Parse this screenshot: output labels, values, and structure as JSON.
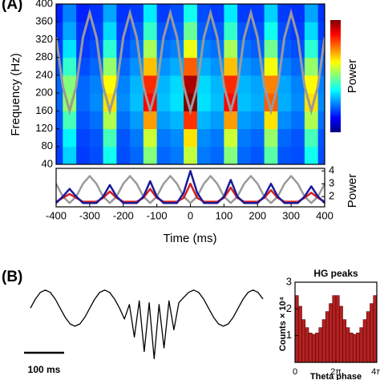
{
  "chart_data": [
    {
      "type": "heatmap",
      "panel_label": "(A)",
      "ylabel": "Frequency (Hz)",
      "colorbar_label": "Power",
      "xlim": [
        -400,
        400
      ],
      "ylim": [
        40,
        400
      ],
      "yticks": [
        40,
        80,
        120,
        160,
        200,
        240,
        280,
        320,
        360,
        400
      ],
      "zlim": [
        0,
        1.15
      ],
      "x": [
        -400,
        -360,
        -320,
        -280,
        -240,
        -200,
        -160,
        -120,
        -80,
        -40,
        0,
        40,
        80,
        120,
        160,
        200,
        240,
        280,
        320,
        360,
        400
      ],
      "y": [
        60,
        100,
        140,
        180,
        220,
        260,
        300,
        340,
        380
      ],
      "z": [
        [
          0.21,
          0.22,
          0.24,
          0.26,
          0.26,
          0.23,
          0.21,
          0.2,
          0.18
        ],
        [
          0.38,
          0.42,
          0.51,
          0.6,
          0.58,
          0.49,
          0.4,
          0.33,
          0.29
        ],
        [
          0.21,
          0.22,
          0.24,
          0.26,
          0.26,
          0.23,
          0.21,
          0.2,
          0.18
        ],
        [
          0.23,
          0.24,
          0.27,
          0.3,
          0.29,
          0.26,
          0.23,
          0.21,
          0.2
        ],
        [
          0.45,
          0.51,
          0.63,
          0.75,
          0.72,
          0.6,
          0.48,
          0.39,
          0.33
        ],
        [
          0.23,
          0.24,
          0.27,
          0.3,
          0.29,
          0.26,
          0.23,
          0.21,
          0.2
        ],
        [
          0.26,
          0.28,
          0.32,
          0.36,
          0.35,
          0.31,
          0.27,
          0.24,
          0.21
        ],
        [
          0.58,
          0.66,
          0.83,
          1.0,
          0.96,
          0.79,
          0.62,
          0.49,
          0.41
        ],
        [
          0.26,
          0.28,
          0.32,
          0.36,
          0.35,
          0.31,
          0.27,
          0.24,
          0.21
        ],
        [
          0.28,
          0.3,
          0.35,
          0.4,
          0.39,
          0.34,
          0.29,
          0.25,
          0.23
        ],
        [
          0.65,
          0.75,
          0.95,
          1.15,
          1.1,
          0.9,
          0.7,
          0.55,
          0.45
        ],
        [
          0.28,
          0.3,
          0.35,
          0.4,
          0.39,
          0.34,
          0.29,
          0.25,
          0.23
        ],
        [
          0.26,
          0.28,
          0.32,
          0.36,
          0.35,
          0.31,
          0.27,
          0.24,
          0.21
        ],
        [
          0.58,
          0.66,
          0.83,
          1.0,
          0.96,
          0.79,
          0.62,
          0.49,
          0.41
        ],
        [
          0.26,
          0.28,
          0.32,
          0.36,
          0.35,
          0.31,
          0.27,
          0.24,
          0.21
        ],
        [
          0.24,
          0.26,
          0.3,
          0.34,
          0.33,
          0.29,
          0.25,
          0.23,
          0.21
        ],
        [
          0.53,
          0.6,
          0.75,
          0.9,
          0.86,
          0.71,
          0.56,
          0.45,
          0.38
        ],
        [
          0.24,
          0.26,
          0.3,
          0.34,
          0.33,
          0.29,
          0.25,
          0.23,
          0.21
        ],
        [
          0.23,
          0.24,
          0.27,
          0.3,
          0.29,
          0.26,
          0.23,
          0.21,
          0.2
        ],
        [
          0.45,
          0.51,
          0.63,
          0.75,
          0.72,
          0.6,
          0.48,
          0.39,
          0.33
        ],
        [
          0.23,
          0.24,
          0.27,
          0.3,
          0.29,
          0.26,
          0.23,
          0.21,
          0.2
        ]
      ],
      "overlay": {
        "color": "#9a9a9a",
        "x": [
          -400,
          -380,
          -360,
          -340,
          -320,
          -300,
          -280,
          -260,
          -240,
          -220,
          -200,
          -180,
          -160,
          -140,
          -120,
          -100,
          -80,
          -60,
          -40,
          -20,
          0,
          20,
          40,
          60,
          80,
          100,
          120,
          140,
          160,
          180,
          200,
          220,
          240,
          260,
          280,
          300,
          320,
          340,
          360,
          380,
          400
        ],
        "values": [
          325,
          215,
          160,
          215,
          325,
          380,
          325,
          215,
          160,
          215,
          325,
          380,
          325,
          215,
          160,
          215,
          325,
          380,
          325,
          215,
          160,
          215,
          325,
          380,
          325,
          215,
          160,
          215,
          325,
          380,
          325,
          215,
          160,
          215,
          325,
          380,
          325,
          215,
          160,
          215,
          325
        ]
      }
    },
    {
      "type": "line",
      "xlabel": "Time (ms)",
      "y2label": "Power",
      "xlim": [
        -400,
        400
      ],
      "xticks": [
        -400,
        -300,
        -200,
        -100,
        0,
        100,
        200,
        300,
        400
      ],
      "y2lim": [
        1.2,
        4.2
      ],
      "y2ticks": [
        2,
        3,
        4
      ],
      "x": [
        -400,
        -380,
        -360,
        -340,
        -320,
        -300,
        -280,
        -260,
        -240,
        -220,
        -200,
        -180,
        -160,
        -140,
        -120,
        -100,
        -80,
        -60,
        -40,
        -20,
        0,
        20,
        40,
        60,
        80,
        100,
        120,
        140,
        160,
        180,
        200,
        220,
        240,
        260,
        280,
        300,
        320,
        340,
        360,
        380,
        400
      ],
      "series": [
        {
          "color": "#9a9a9a",
          "axis": "y2",
          "values": [
            3.0,
            2.0,
            1.5,
            2.0,
            3.0,
            3.6,
            3.0,
            2.0,
            1.5,
            2.0,
            3.0,
            3.6,
            3.0,
            2.0,
            1.5,
            2.0,
            3.0,
            3.6,
            3.0,
            2.0,
            1.5,
            2.0,
            3.0,
            3.6,
            3.0,
            2.0,
            1.5,
            2.0,
            3.0,
            3.6,
            3.0,
            2.0,
            1.5,
            2.0,
            3.0,
            3.6,
            3.0,
            2.0,
            1.5,
            2.0,
            3.0
          ]
        },
        {
          "color": "#d42020",
          "axis": "y2",
          "values": [
            1.6,
            1.9,
            2.2,
            1.9,
            1.6,
            1.6,
            1.6,
            1.9,
            2.4,
            1.9,
            1.6,
            1.6,
            1.6,
            1.9,
            2.6,
            1.9,
            1.6,
            1.6,
            1.6,
            1.9,
            3.0,
            1.9,
            1.6,
            1.6,
            1.6,
            1.9,
            2.7,
            1.9,
            1.6,
            1.6,
            1.6,
            1.9,
            2.5,
            1.9,
            1.6,
            1.6,
            1.6,
            1.9,
            2.3,
            1.9,
            1.6
          ]
        },
        {
          "color": "#1a1a9a",
          "axis": "y2",
          "values": [
            1.5,
            2.0,
            2.6,
            2.0,
            1.5,
            1.5,
            1.5,
            2.0,
            2.9,
            2.0,
            1.5,
            1.5,
            1.5,
            2.0,
            3.2,
            2.0,
            1.5,
            1.5,
            1.5,
            2.3,
            4.0,
            2.3,
            1.5,
            1.5,
            1.5,
            2.0,
            3.3,
            2.0,
            1.5,
            1.5,
            1.5,
            2.0,
            3.0,
            2.0,
            1.5,
            1.5,
            1.5,
            2.0,
            2.8,
            2.0,
            1.5
          ]
        }
      ]
    },
    {
      "type": "line",
      "panel_label": "(B)",
      "scale_bar_label": "100 ms",
      "ylim": [
        -3,
        1.3
      ],
      "series": [
        {
          "color": "#000000",
          "values": [
            0,
            0.5,
            0.87,
            1,
            0.87,
            0.5,
            0,
            -0.5,
            -0.87,
            -1,
            -0.87,
            -0.5,
            0,
            0.5,
            0.87,
            1,
            0.87,
            0.5,
            0,
            -0.6,
            0.2,
            -1.6,
            0.4,
            -2.4,
            0.3,
            -2.8,
            0.2,
            -2.2,
            0.4,
            -1.2,
            0.3,
            0.6,
            0.87,
            1,
            0.87,
            0.5,
            0,
            -0.5,
            -0.87,
            -1,
            -0.87,
            -0.5,
            0,
            0.5,
            0.87,
            1,
            0.87,
            0.5
          ]
        }
      ]
    },
    {
      "type": "histogram",
      "title": "HG peaks",
      "ylabel": "Counts × 10⁴",
      "xlabel": "Theta phase",
      "color": "#b22222",
      "xlim": [
        0,
        12.5664
      ],
      "xticks": [
        0,
        {
          "value": 6.2832,
          "label": "2π"
        },
        {
          "value": 12.5664,
          "label": "4π"
        }
      ],
      "ylim": [
        0,
        3
      ],
      "yticks": [
        1,
        2,
        3
      ],
      "bins": [
        0,
        0.5236,
        1.0472,
        1.5708,
        2.0944,
        2.618,
        3.1416,
        3.6652,
        4.1888,
        4.7124,
        5.236,
        5.7596,
        6.2832,
        6.8068,
        7.3304,
        7.854,
        8.3776,
        8.9012,
        9.4248,
        9.9484,
        10.472,
        10.9956,
        11.5192,
        12.0428,
        12.5664
      ],
      "values": [
        2.5,
        2.1,
        1.6,
        1.3,
        1.1,
        1.05,
        1.1,
        1.3,
        1.6,
        1.9,
        2.2,
        2.5,
        2.5,
        2.1,
        1.6,
        1.3,
        1.1,
        1.05,
        1.1,
        1.3,
        1.6,
        1.9,
        2.2,
        2.5
      ]
    }
  ]
}
